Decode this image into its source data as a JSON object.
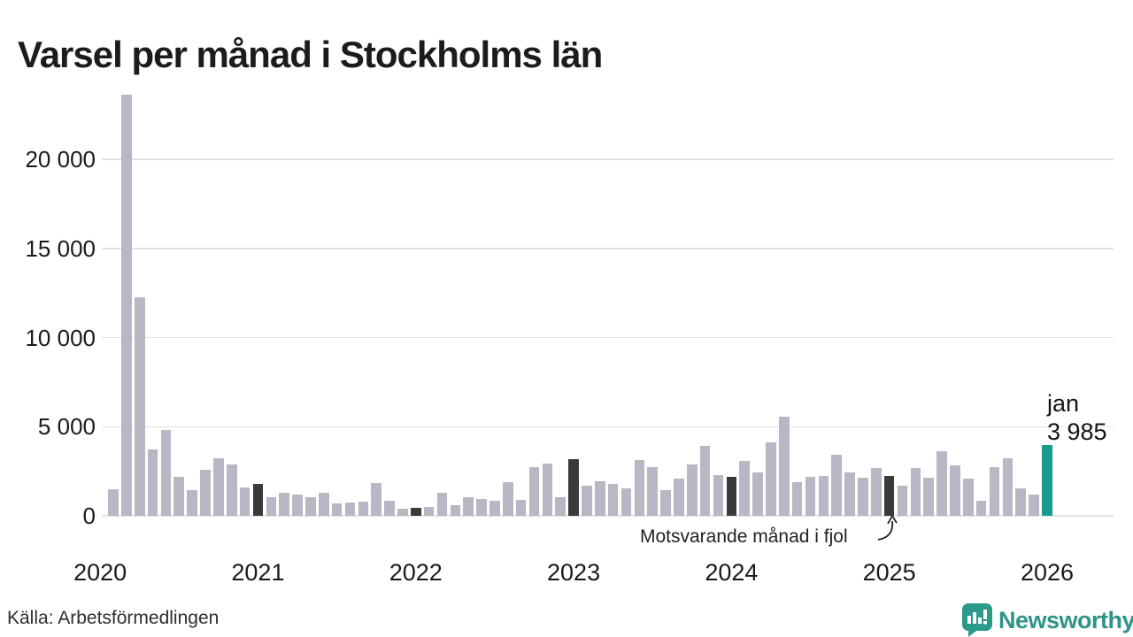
{
  "title": "Varsel per månad i Stockholms län",
  "source": "Källa: Arbetsförmedlingen",
  "annotation": {
    "text": "Motsvarande månad i fjol"
  },
  "highlight": {
    "month_label": "jan",
    "value_label": "3 985"
  },
  "branding": {
    "name": "Newsworthy"
  },
  "colors": {
    "bar_default": "#b9b7c3",
    "bar_last_year": "#3a3a3a",
    "bar_current": "#199c8c",
    "grid": "#e2e2e2",
    "text": "#1a1a1a",
    "brand_teal": "#2f9488"
  },
  "chart_data": {
    "type": "bar",
    "title": "Varsel per månad i Stockholms län",
    "xlabel": "",
    "ylabel": "",
    "ylim": [
      0,
      24000
    ],
    "grid": true,
    "legend": false,
    "yticks": [
      {
        "value": 0,
        "label": "0"
      },
      {
        "value": 5000,
        "label": "5 000"
      },
      {
        "value": 10000,
        "label": "10 000"
      },
      {
        "value": 15000,
        "label": "15 000"
      },
      {
        "value": 20000,
        "label": "20 000"
      }
    ],
    "xticks": [
      {
        "label": "2020",
        "year": 2020
      },
      {
        "label": "2021",
        "year": 2021
      },
      {
        "label": "2022",
        "year": 2022
      },
      {
        "label": "2023",
        "year": 2023
      },
      {
        "label": "2024",
        "year": 2024
      },
      {
        "label": "2025",
        "year": 2025
      },
      {
        "label": "2026",
        "year": 2026
      }
    ],
    "series": [
      {
        "month": "2020-02",
        "value": 1500,
        "type": "default"
      },
      {
        "month": "2020-03",
        "value": 23650,
        "type": "default"
      },
      {
        "month": "2020-04",
        "value": 12250,
        "type": "default"
      },
      {
        "month": "2020-05",
        "value": 3700,
        "type": "default"
      },
      {
        "month": "2020-06",
        "value": 4800,
        "type": "default"
      },
      {
        "month": "2020-07",
        "value": 2200,
        "type": "default"
      },
      {
        "month": "2020-08",
        "value": 1450,
        "type": "default"
      },
      {
        "month": "2020-09",
        "value": 2600,
        "type": "default"
      },
      {
        "month": "2020-10",
        "value": 3250,
        "type": "default"
      },
      {
        "month": "2020-11",
        "value": 2900,
        "type": "default"
      },
      {
        "month": "2020-12",
        "value": 1600,
        "type": "default"
      },
      {
        "month": "2021-01",
        "value": 1800,
        "type": "last_year"
      },
      {
        "month": "2021-02",
        "value": 1050,
        "type": "default"
      },
      {
        "month": "2021-03",
        "value": 1300,
        "type": "default"
      },
      {
        "month": "2021-04",
        "value": 1200,
        "type": "default"
      },
      {
        "month": "2021-05",
        "value": 1050,
        "type": "default"
      },
      {
        "month": "2021-06",
        "value": 1300,
        "type": "default"
      },
      {
        "month": "2021-07",
        "value": 700,
        "type": "default"
      },
      {
        "month": "2021-08",
        "value": 750,
        "type": "default"
      },
      {
        "month": "2021-09",
        "value": 800,
        "type": "default"
      },
      {
        "month": "2021-10",
        "value": 1850,
        "type": "default"
      },
      {
        "month": "2021-11",
        "value": 850,
        "type": "default"
      },
      {
        "month": "2021-12",
        "value": 400,
        "type": "default"
      },
      {
        "month": "2022-01",
        "value": 450,
        "type": "last_year"
      },
      {
        "month": "2022-02",
        "value": 500,
        "type": "default"
      },
      {
        "month": "2022-03",
        "value": 1300,
        "type": "default"
      },
      {
        "month": "2022-04",
        "value": 600,
        "type": "default"
      },
      {
        "month": "2022-05",
        "value": 1050,
        "type": "default"
      },
      {
        "month": "2022-06",
        "value": 950,
        "type": "default"
      },
      {
        "month": "2022-07",
        "value": 850,
        "type": "default"
      },
      {
        "month": "2022-08",
        "value": 1900,
        "type": "default"
      },
      {
        "month": "2022-09",
        "value": 900,
        "type": "default"
      },
      {
        "month": "2022-10",
        "value": 2750,
        "type": "default"
      },
      {
        "month": "2022-11",
        "value": 2950,
        "type": "default"
      },
      {
        "month": "2022-12",
        "value": 1050,
        "type": "default"
      },
      {
        "month": "2023-01",
        "value": 3200,
        "type": "last_year"
      },
      {
        "month": "2023-02",
        "value": 1700,
        "type": "default"
      },
      {
        "month": "2023-03",
        "value": 1950,
        "type": "default"
      },
      {
        "month": "2023-04",
        "value": 1800,
        "type": "default"
      },
      {
        "month": "2023-05",
        "value": 1550,
        "type": "default"
      },
      {
        "month": "2023-06",
        "value": 3150,
        "type": "default"
      },
      {
        "month": "2023-07",
        "value": 2750,
        "type": "default"
      },
      {
        "month": "2023-08",
        "value": 1450,
        "type": "default"
      },
      {
        "month": "2023-09",
        "value": 2100,
        "type": "default"
      },
      {
        "month": "2023-10",
        "value": 2900,
        "type": "default"
      },
      {
        "month": "2023-11",
        "value": 3900,
        "type": "default"
      },
      {
        "month": "2023-12",
        "value": 2300,
        "type": "default"
      },
      {
        "month": "2024-01",
        "value": 2200,
        "type": "last_year"
      },
      {
        "month": "2024-02",
        "value": 3100,
        "type": "default"
      },
      {
        "month": "2024-03",
        "value": 2450,
        "type": "default"
      },
      {
        "month": "2024-04",
        "value": 4100,
        "type": "default"
      },
      {
        "month": "2024-05",
        "value": 5550,
        "type": "default"
      },
      {
        "month": "2024-06",
        "value": 1900,
        "type": "default"
      },
      {
        "month": "2024-07",
        "value": 2200,
        "type": "default"
      },
      {
        "month": "2024-08",
        "value": 2250,
        "type": "default"
      },
      {
        "month": "2024-09",
        "value": 3450,
        "type": "default"
      },
      {
        "month": "2024-10",
        "value": 2450,
        "type": "default"
      },
      {
        "month": "2024-11",
        "value": 2150,
        "type": "default"
      },
      {
        "month": "2024-12",
        "value": 2700,
        "type": "default"
      },
      {
        "month": "2025-01",
        "value": 2250,
        "type": "last_year"
      },
      {
        "month": "2025-02",
        "value": 1700,
        "type": "default"
      },
      {
        "month": "2025-03",
        "value": 2700,
        "type": "default"
      },
      {
        "month": "2025-04",
        "value": 2150,
        "type": "default"
      },
      {
        "month": "2025-05",
        "value": 3600,
        "type": "default"
      },
      {
        "month": "2025-06",
        "value": 2850,
        "type": "default"
      },
      {
        "month": "2025-07",
        "value": 2100,
        "type": "default"
      },
      {
        "month": "2025-08",
        "value": 850,
        "type": "default"
      },
      {
        "month": "2025-09",
        "value": 2750,
        "type": "default"
      },
      {
        "month": "2025-10",
        "value": 3250,
        "type": "default"
      },
      {
        "month": "2025-11",
        "value": 1550,
        "type": "default"
      },
      {
        "month": "2025-12",
        "value": 1200,
        "type": "default"
      },
      {
        "month": "2026-01",
        "value": 3985,
        "type": "current"
      }
    ]
  }
}
